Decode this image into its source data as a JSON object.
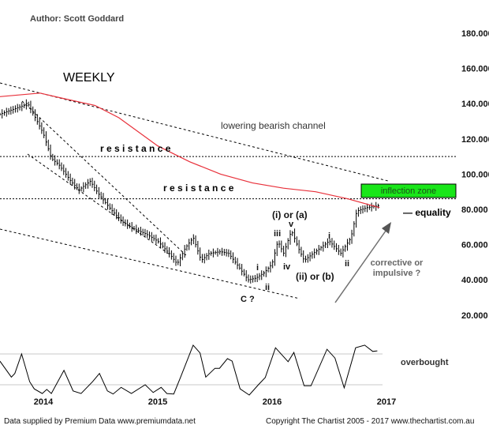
{
  "author": "Author: Scott Goddard",
  "timeframe": "WEEKLY",
  "footer_left": "Data supplied by Premium Data www.premiumdata.net",
  "footer_right": "Copyright The Chartist 2005 - 2017 www.thechartist.com.au",
  "colors": {
    "price": "#000000",
    "moving_average": "#e8303a",
    "inflection_zone": "#19e619",
    "oscillator": "#000000",
    "guide": "#c8c8c8",
    "arrow": "#707070"
  },
  "chart_data": [
    {
      "type": "line",
      "subtype": "ohlc-bars",
      "x_axis": {
        "ticks": [
          "2014",
          "2015",
          "2016",
          "2017"
        ],
        "tick_values": [
          2014,
          2015,
          2016,
          2017
        ],
        "range": [
          2013.62,
          2017.0
        ]
      },
      "y_axis": {
        "position": "right",
        "ticks": [
          "20.000",
          "40.000",
          "60.000",
          "80.000",
          "100.000",
          "120.000",
          "140.000",
          "160.000",
          "180.000"
        ],
        "tick_values": [
          20,
          40,
          60,
          80,
          100,
          120,
          140,
          160,
          180
        ],
        "range": [
          10,
          180
        ]
      },
      "grid": false,
      "series": [
        {
          "kind": "price",
          "x": [
            2013.62,
            2013.83,
            2013.86,
            2013.93,
            2014.0,
            2014.07,
            2014.14,
            2014.24,
            2014.31,
            2014.41,
            2014.48,
            2014.59,
            2014.69,
            2014.79,
            2014.9,
            2015.0,
            2015.1,
            2015.17,
            2015.24,
            2015.31,
            2015.38,
            2015.45,
            2015.55,
            2015.62,
            2015.69,
            2015.79,
            2015.86,
            2015.93,
            2016.0,
            2016.05,
            2016.1,
            2016.17,
            2016.23,
            2016.28,
            2016.38,
            2016.5,
            2016.6,
            2016.69,
            2016.74,
            2016.83,
            2016.93
          ],
          "y": [
            134,
            139,
            140.5,
            132,
            123,
            109,
            105,
            96,
            91,
            96,
            89,
            80,
            73,
            69,
            66,
            62,
            55,
            49,
            58,
            64,
            51,
            55,
            56,
            55,
            49,
            40,
            41,
            44,
            49,
            62,
            55,
            68,
            58,
            51,
            56,
            62,
            55,
            64,
            79,
            81,
            82
          ]
        },
        {
          "kind": "moving-average",
          "x": [
            2013.62,
            2013.97,
            2014.17,
            2014.45,
            2014.66,
            2015.0,
            2015.28,
            2015.55,
            2015.83,
            2016.1,
            2016.38,
            2016.66,
            2016.94
          ],
          "y": [
            144,
            146,
            143,
            139,
            132,
            116,
            107,
            100,
            95,
            92,
            90,
            86,
            81
          ]
        }
      ],
      "levels": [
        {
          "label": "r e s i s t a n c e",
          "value": 110
        },
        {
          "label": "r e s i s t a n c e",
          "value": 86
        }
      ],
      "annotations": {
        "channel": "lowering bearish channel",
        "inflection": "inflection zone",
        "equality": "— equality",
        "corrective_1": "corrective or",
        "corrective_2": "impulsive ?",
        "waves": {
          "c": "C ?",
          "i1": "i",
          "ii1": "ii",
          "iii": "iii",
          "iv": "iv",
          "v": "v",
          "ia": "(i) or (a)",
          "iib": "(ii) or (b)",
          "i2": "i",
          "ii2": "ii"
        }
      }
    },
    {
      "type": "line",
      "kind": "oscillator",
      "label": "overbought",
      "levels": [
        80,
        20
      ],
      "range": [
        0,
        100
      ],
      "x": [
        2013.62,
        2013.72,
        2013.75,
        2013.81,
        2013.88,
        2013.92,
        2013.99,
        2014.03,
        2014.07,
        2014.18,
        2014.26,
        2014.33,
        2014.43,
        2014.49,
        2014.56,
        2014.61,
        2014.68,
        2014.77,
        2014.89,
        2014.96,
        2015.03,
        2015.08,
        2015.14,
        2015.2,
        2015.31,
        2015.37,
        2015.42,
        2015.5,
        2015.54,
        2015.61,
        2015.65,
        2015.72,
        2015.8,
        2015.88,
        2015.94,
        2016.03,
        2016.14,
        2016.19,
        2016.28,
        2016.34,
        2016.48,
        2016.55,
        2016.63,
        2016.73,
        2016.81,
        2016.88,
        2016.92
      ],
      "y": [
        66,
        35,
        42,
        80,
        26,
        12,
        3,
        11,
        3,
        48,
        8,
        3,
        26,
        42,
        8,
        2,
        15,
        3,
        20,
        5,
        15,
        3,
        2,
        35,
        97,
        82,
        35,
        52,
        52,
        71,
        66,
        12,
        0,
        20,
        34,
        92,
        65,
        83,
        18,
        18,
        89,
        72,
        14,
        92,
        97,
        85,
        86
      ]
    }
  ]
}
